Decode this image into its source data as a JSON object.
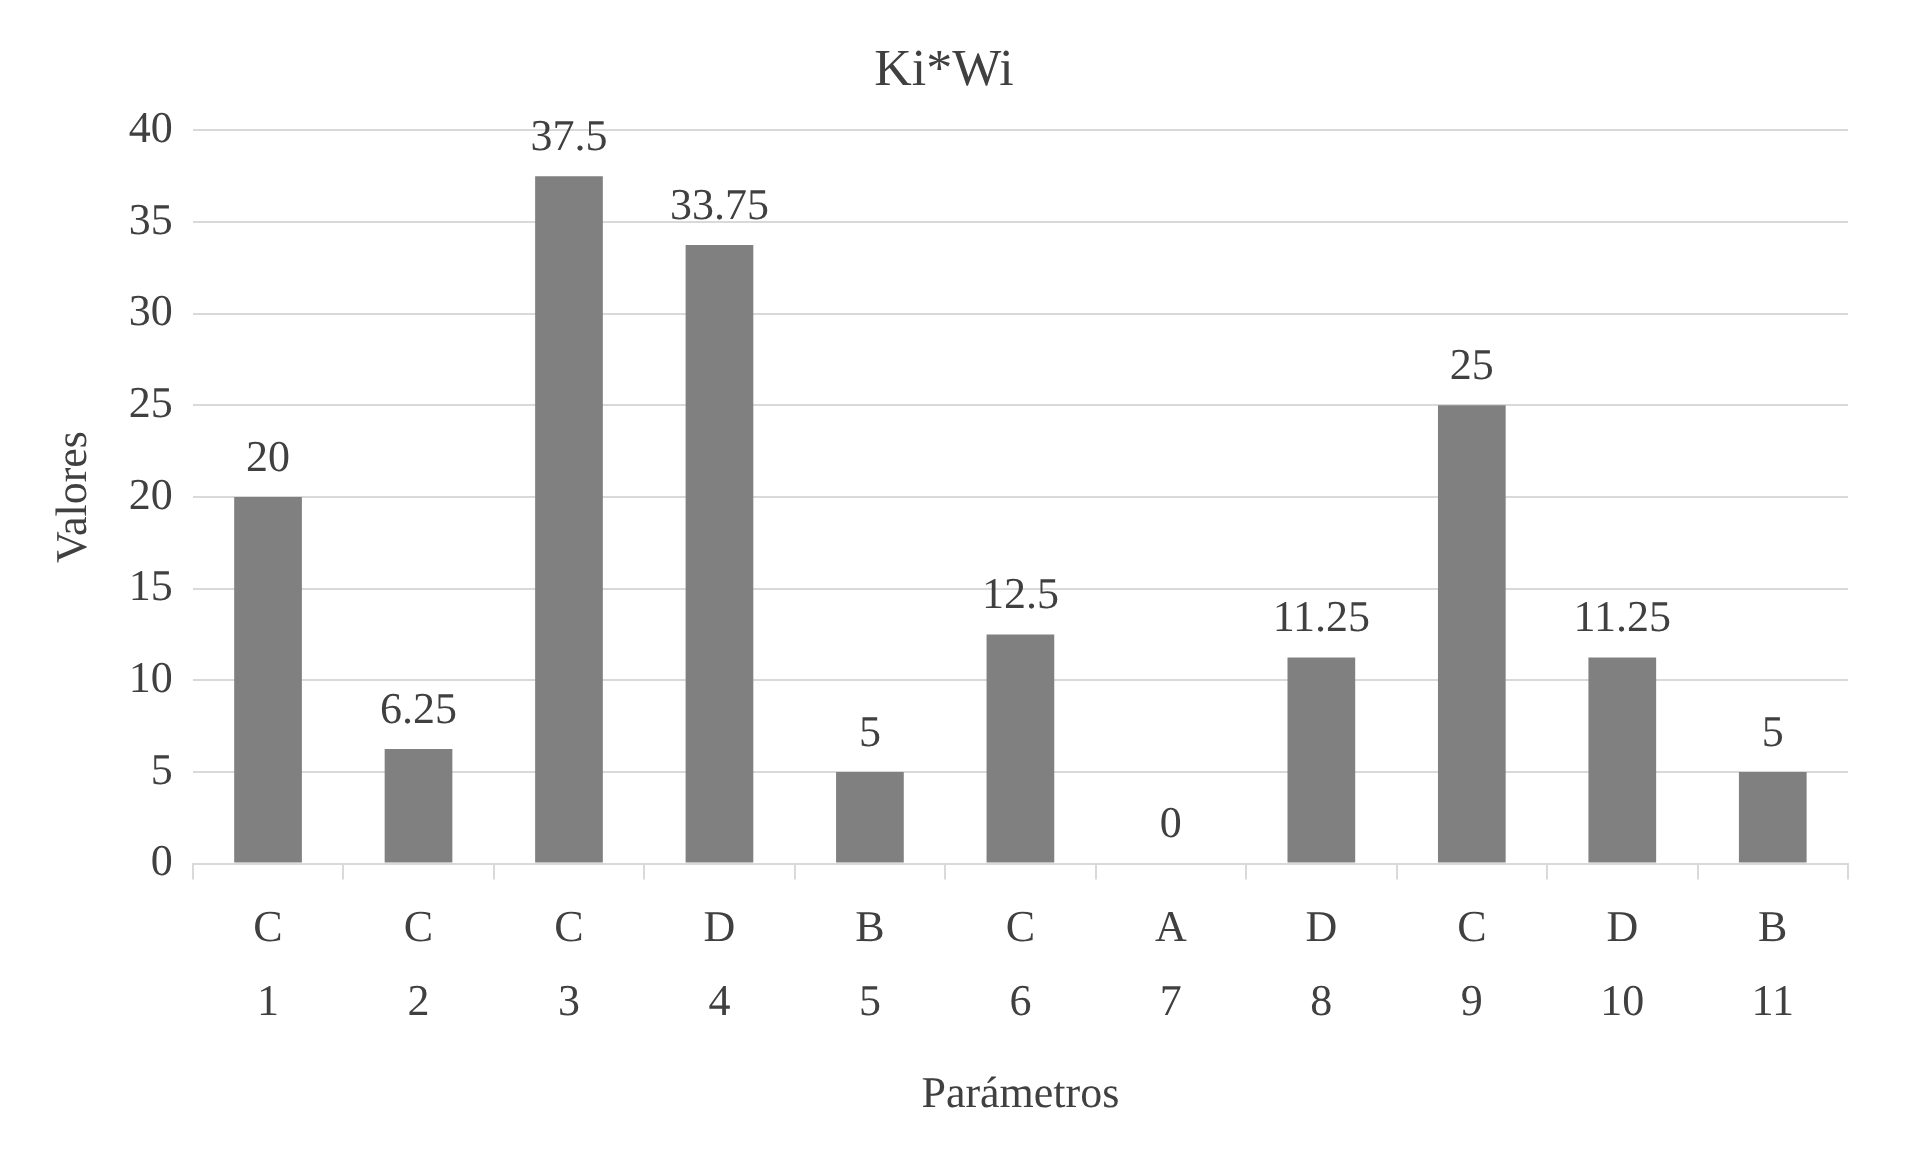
{
  "chart_data": {
    "type": "bar",
    "title": "Ki*Wi",
    "xlabel": "Parámetros",
    "ylabel": "Valores",
    "categories": [
      "C\n1",
      "C\n2",
      "C\n3",
      "D\n4",
      "B\n5",
      "C\n6",
      "A\n7",
      "D\n8",
      "C\n9",
      "D\n10",
      "B\n11"
    ],
    "values": [
      20,
      6.25,
      37.5,
      33.75,
      5,
      12.5,
      0,
      11.25,
      25,
      11.25,
      5
    ],
    "color": "#808080",
    "ylim": [
      0,
      40
    ],
    "yticks": [
      0,
      5,
      10,
      15,
      20,
      25,
      30,
      35,
      40
    ],
    "grid": "y",
    "data_labels": true,
    "legend": false
  }
}
